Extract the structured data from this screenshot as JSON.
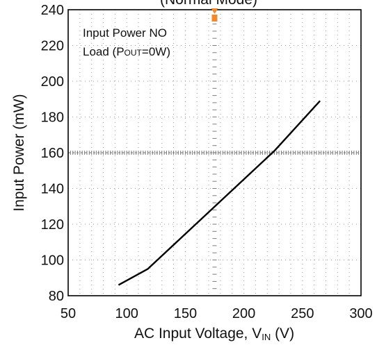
{
  "chart_data": {
    "type": "line",
    "title": "(Normal Mode)",
    "xlabel": "AC Input Voltage, V",
    "xlabel_sub": "IN",
    "xlabel_unit": " (V)",
    "ylabel": "Input Power (mW)",
    "xlim": [
      50,
      300
    ],
    "ylim": [
      80,
      240
    ],
    "xticks": [
      50,
      100,
      150,
      200,
      250,
      300
    ],
    "yticks": [
      80,
      100,
      120,
      140,
      160,
      180,
      200,
      220,
      240
    ],
    "grid": true,
    "annotation": {
      "line1": "Input Power NO",
      "line2_prefix": "Load (P",
      "line2_sub": "OUT",
      "line2_suffix": "=0W)"
    },
    "series": [
      {
        "color": "#000000",
        "x": [
          93,
          118,
          226,
          265
        ],
        "y": [
          86,
          95,
          161,
          189
        ]
      }
    ],
    "marker_color": "#f08a2c"
  }
}
